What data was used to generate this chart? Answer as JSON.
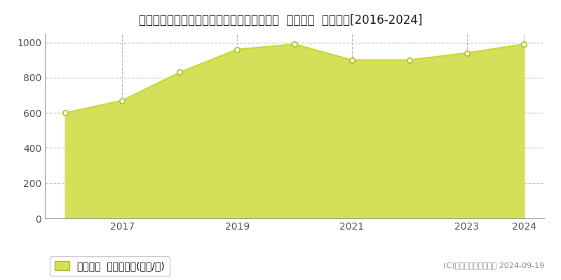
{
  "title": "兵庫県神戸市中央区元町通１丁目１１番２０  基準地価  地価推移[2016-2024]",
  "years": [
    2016,
    2017,
    2018,
    2019,
    2020,
    2021,
    2022,
    2023,
    2024
  ],
  "values": [
    600,
    670,
    830,
    960,
    990,
    900,
    900,
    940,
    990
  ],
  "line_color": "#c8d832",
  "fill_color": "#d4e05a",
  "fill_alpha": 1.0,
  "marker_facecolor": "#ffffff",
  "marker_edgecolor": "#b0c020",
  "ylim": [
    0,
    1050
  ],
  "yticks": [
    0,
    200,
    400,
    600,
    800,
    1000
  ],
  "xtick_years": [
    2017,
    2019,
    2021,
    2023,
    2024
  ],
  "legend_label": "基準地価  平均坪単価(万円/坪)",
  "copyright_text": "(C)土地価格ドットコム 2024-09-19",
  "background_color": "#ffffff",
  "grid_color": "#bbbbbb",
  "title_fontsize": 12,
  "tick_fontsize": 10,
  "legend_fontsize": 10,
  "copyright_fontsize": 8
}
